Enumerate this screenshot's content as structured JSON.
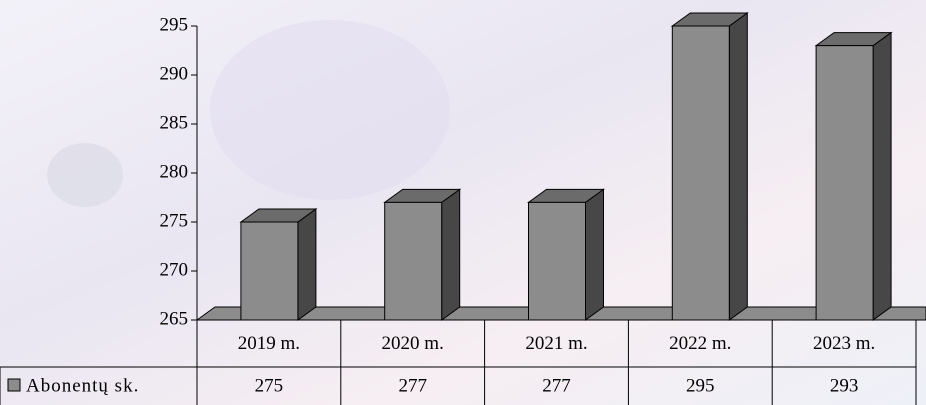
{
  "chart_data": {
    "type": "bar3d",
    "categories": [
      "2019 m.",
      "2020 m.",
      "2021 m.",
      "2022 m.",
      "2023 m."
    ],
    "series": [
      {
        "name": "Abonentų sk.",
        "color": "#8c8c8c",
        "values": [
          275,
          277,
          277,
          295,
          293
        ]
      }
    ],
    "ylim": [
      265,
      295
    ],
    "yticks": [
      265,
      270,
      275,
      280,
      285,
      290,
      295
    ]
  }
}
